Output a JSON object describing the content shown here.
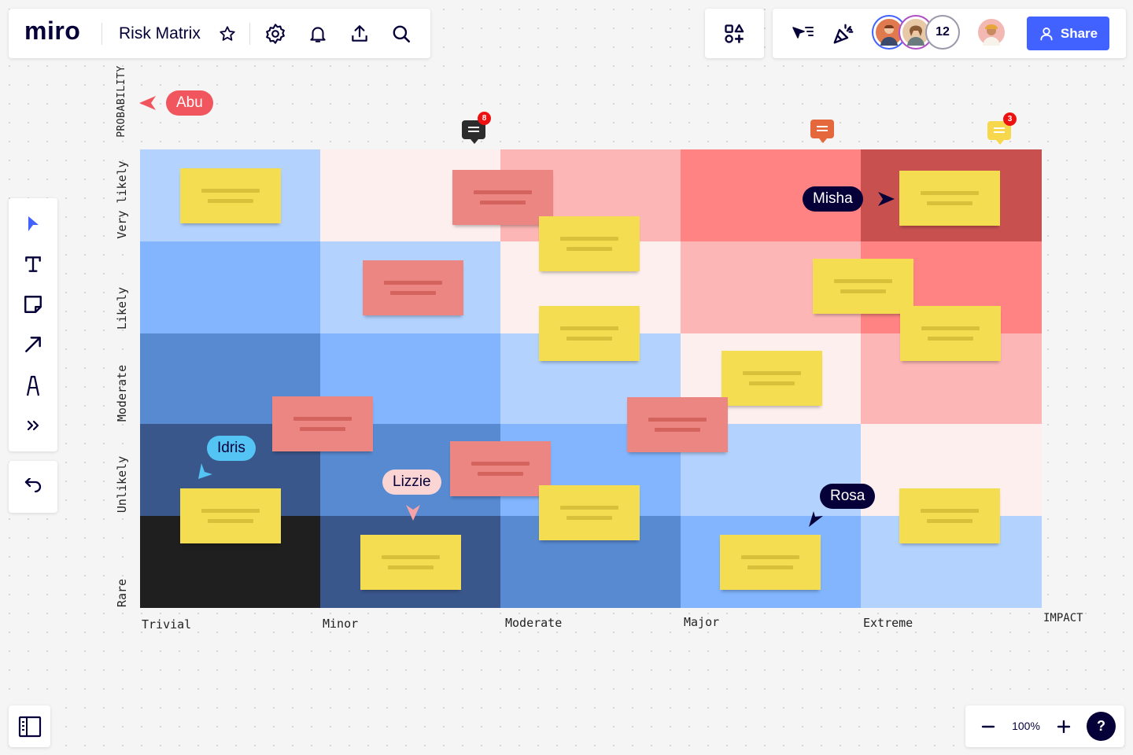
{
  "app": {
    "logo": "miro",
    "board_title": "Risk Matrix"
  },
  "toolbar_icons": [
    "star-icon",
    "settings-icon",
    "bell-icon",
    "upload-icon",
    "search-icon"
  ],
  "collab": {
    "user_count": "12",
    "share_label": "Share"
  },
  "matrix": {
    "y_axis_title": "PROBABILITY",
    "x_axis_title": "IMPACT",
    "rows": [
      "Very likely",
      "Likely",
      "Moderate",
      "Unlikely",
      "Rare"
    ],
    "columns": [
      "Trivial",
      "Minor",
      "Moderate",
      "Major",
      "Extreme"
    ],
    "cell_colors": [
      [
        "#b3d2fe",
        "#fdefee",
        "#fdb6b6",
        "#ff8383",
        "#c85150"
      ],
      [
        "#82b5fd",
        "#b3d2fe",
        "#fdefee",
        "#fdb6b6",
        "#ff8383"
      ],
      [
        "#588ad1",
        "#82b5fd",
        "#b3d2fe",
        "#fdefee",
        "#fdb6b6"
      ],
      [
        "#3a578c",
        "#588ad1",
        "#82b5fd",
        "#b3d2fe",
        "#fdefee"
      ],
      [
        "#1f1f1f",
        "#3a578c",
        "#588ad1",
        "#82b5fd",
        "#b3d2fe"
      ]
    ]
  },
  "cursors": {
    "abu": "Abu",
    "misha": "Misha",
    "idris": "Idris",
    "lizzie": "Lizzie",
    "rosa": "Rosa"
  },
  "comments": {
    "dark_count": "8",
    "yellow_count": "3"
  },
  "zoom": {
    "level": "100%",
    "help": "?"
  },
  "colors": {
    "accent": "#4262ff",
    "sticky_yellow": "#f5dd52",
    "sticky_red": "#ec8682"
  }
}
